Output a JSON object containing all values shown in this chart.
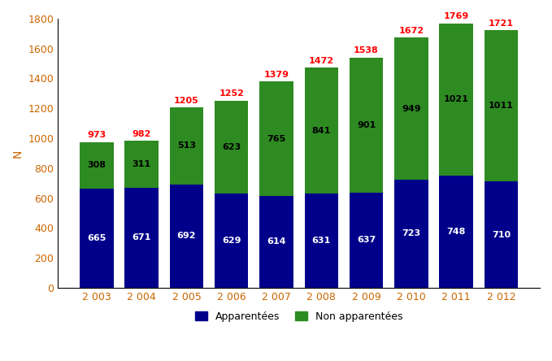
{
  "years": [
    "2003",
    "2004",
    "2005",
    "2006",
    "2007",
    "2008",
    "2009",
    "2010",
    "2011",
    "2012"
  ],
  "apparentees": [
    665,
    671,
    692,
    629,
    614,
    631,
    637,
    723,
    748,
    710
  ],
  "non_apparentees": [
    308,
    311,
    513,
    623,
    765,
    841,
    901,
    949,
    1021,
    1011
  ],
  "totals": [
    973,
    982,
    1205,
    1252,
    1379,
    1472,
    1538,
    1672,
    1769,
    1721
  ],
  "color_apparentees": "#00008B",
  "color_non_apparentees": "#2E8B22",
  "color_total_label": "#FF0000",
  "color_white_label": "#FFFFFF",
  "color_dark_label": "#000000",
  "color_axis_text": "#CC6600",
  "ylabel": "N",
  "ylim": [
    0,
    1800
  ],
  "yticks": [
    0,
    200,
    400,
    600,
    800,
    1000,
    1200,
    1400,
    1600,
    1800
  ],
  "legend_apparentees": "Apparentées",
  "legend_non_apparentees": "Non apparentées",
  "bar_width": 0.75,
  "figsize": [
    6.79,
    4.44
  ],
  "dpi": 100
}
